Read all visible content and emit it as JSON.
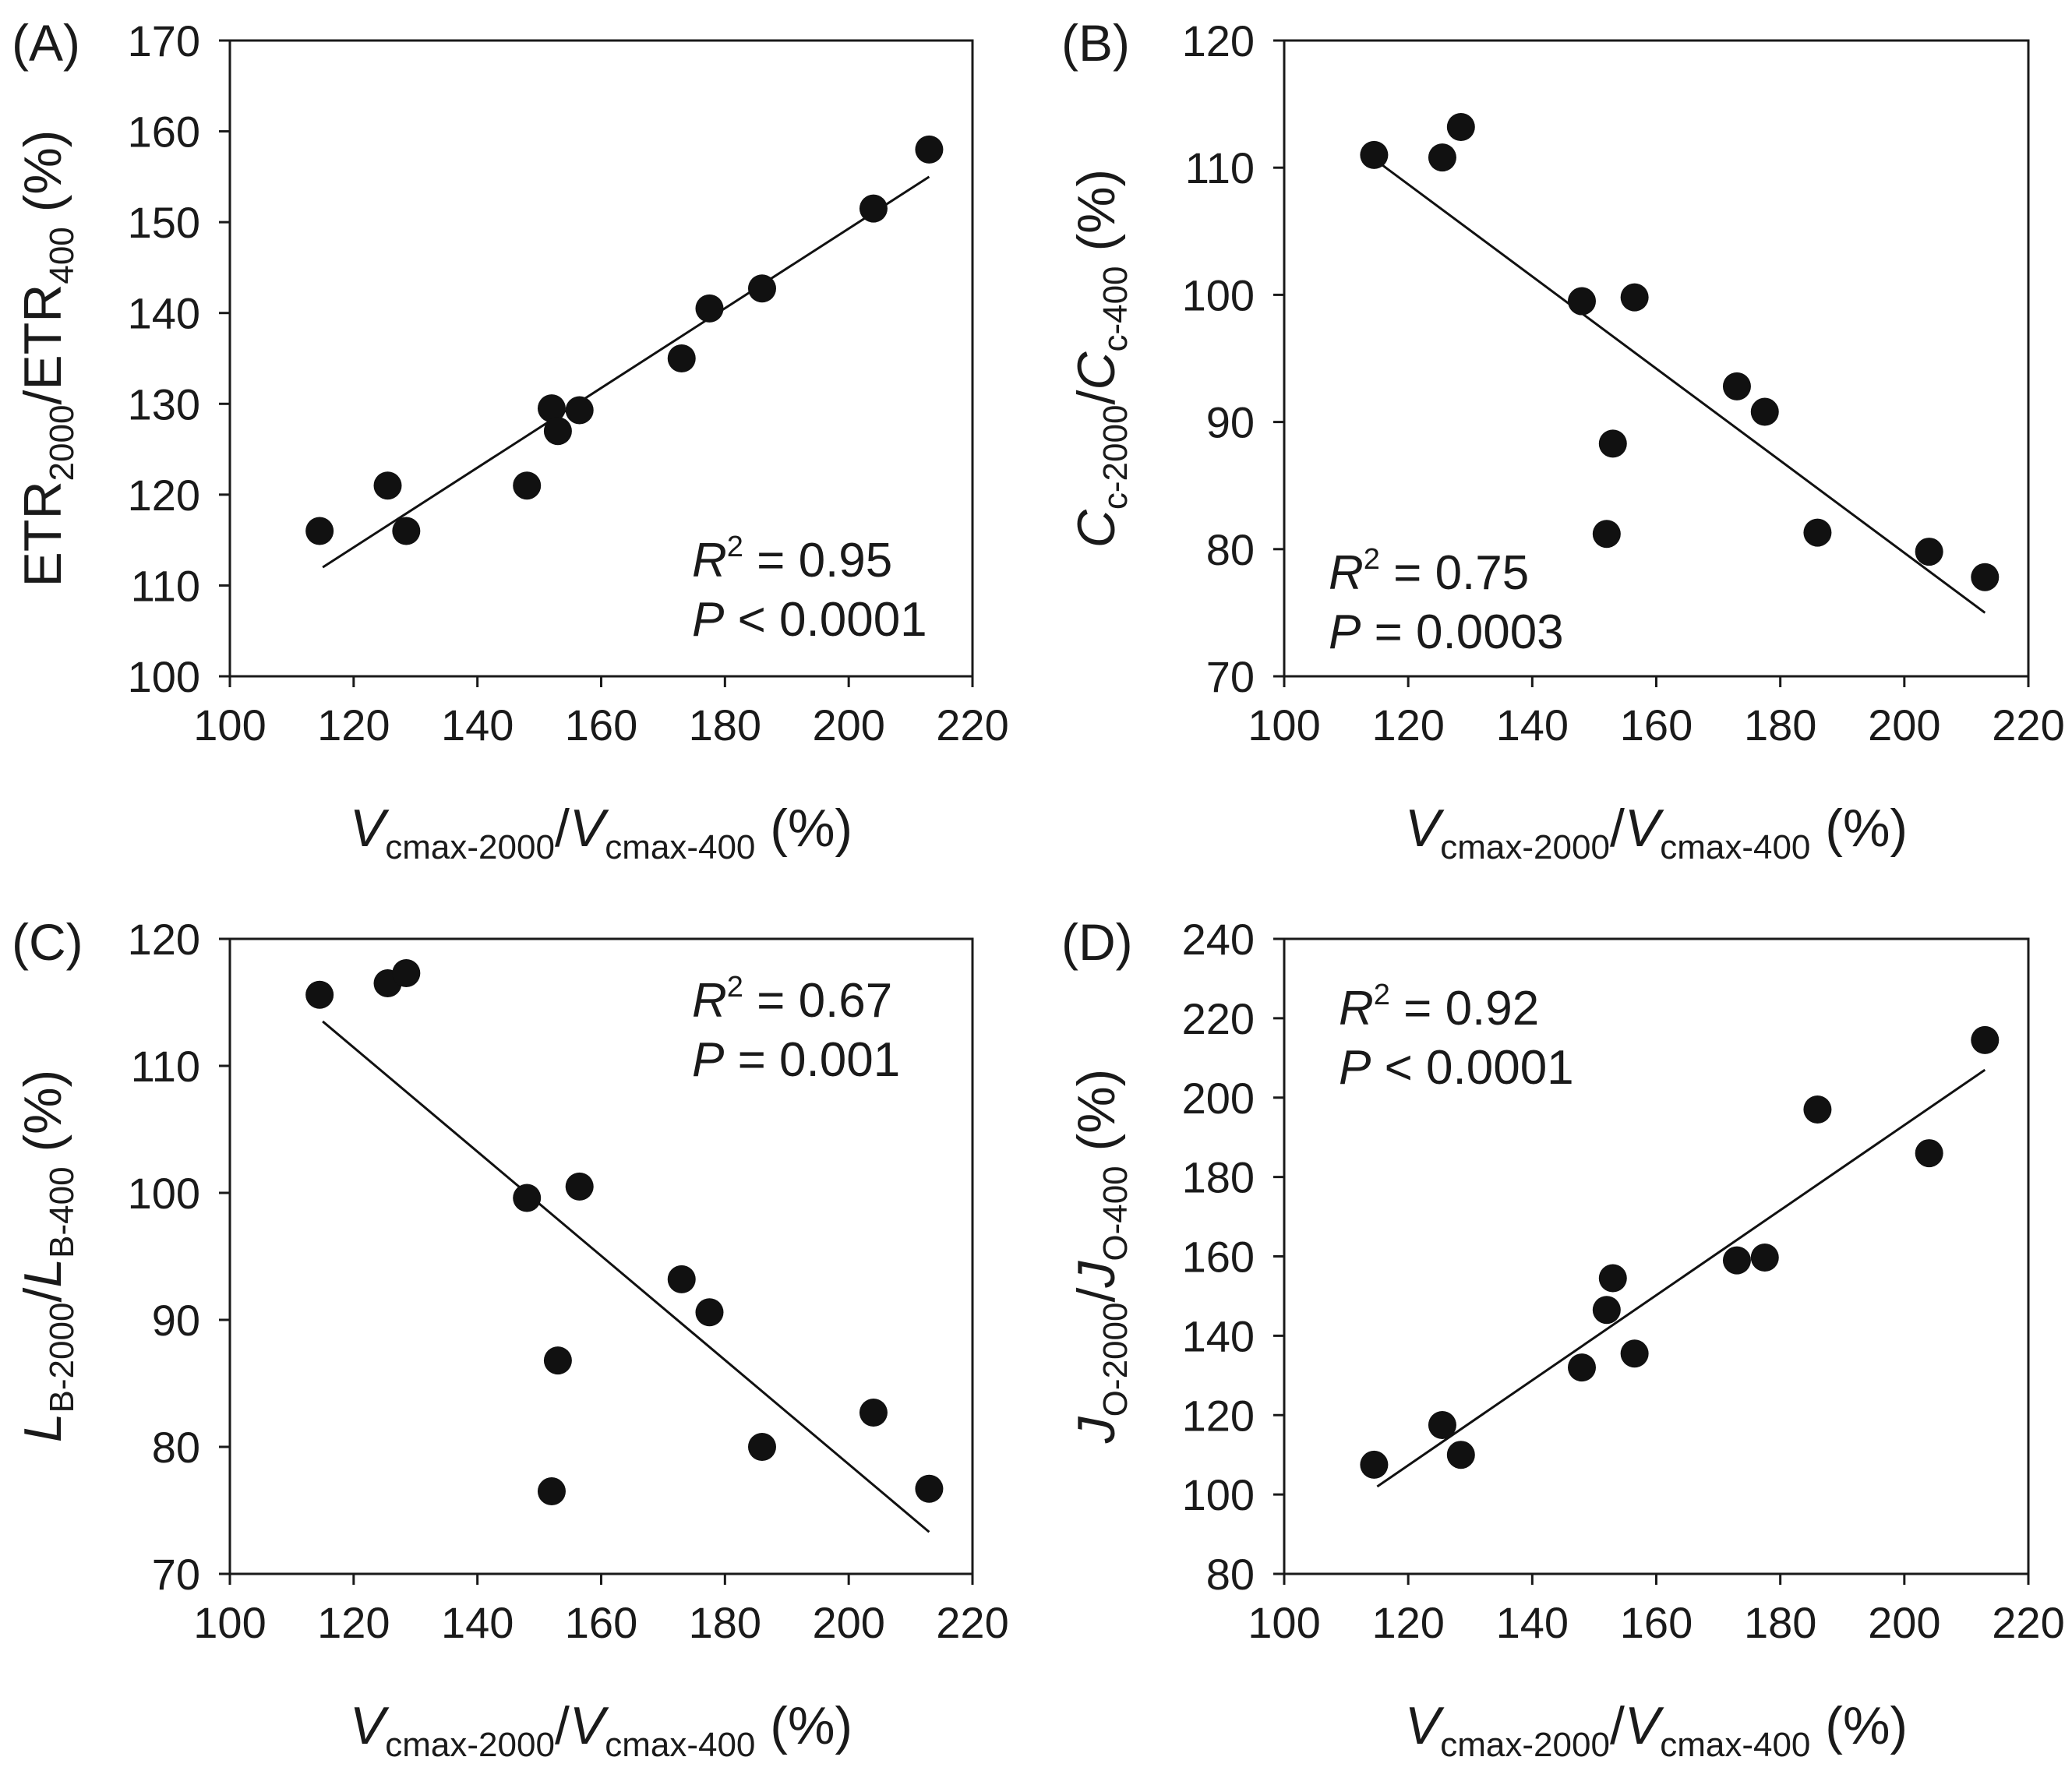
{
  "chart_data": [
    {
      "panel": "(A)",
      "type": "scatter",
      "xlabel": {
        "main": "V",
        "sub1": "cmax-2000",
        "slash": "/",
        "main2": "V",
        "sub2": "cmax-400",
        "unit": " (%)"
      },
      "ylabel": {
        "main": "ETR",
        "sub1": "2000",
        "slash": "/ETR",
        "sub2": "400",
        "unit": " (%)"
      },
      "xlim": [
        100,
        220
      ],
      "ylim": [
        100,
        170
      ],
      "xticks": [
        "100",
        "120",
        "140",
        "160",
        "180",
        "200",
        "220"
      ],
      "yticks": [
        "100",
        "110",
        "120",
        "130",
        "140",
        "150",
        "160",
        "170"
      ],
      "x": [
        114.5,
        125.5,
        128.5,
        148,
        152,
        153,
        156.5,
        173,
        177.5,
        186,
        204,
        213
      ],
      "y": [
        116,
        121,
        116,
        121,
        129.5,
        127,
        129.3,
        135,
        140.5,
        142.7,
        151.5,
        158
      ],
      "fit": {
        "x": [
          115,
          213
        ],
        "y": [
          112,
          155
        ]
      },
      "stats": {
        "r2_label": "R",
        "r2_sup": "2",
        "r2_value": " = 0.95",
        "p_label": "P",
        "p_value": " < 0.0001"
      }
    },
    {
      "panel": "(B)",
      "type": "scatter",
      "xlabel": {
        "main": "V",
        "sub1": "cmax-2000",
        "slash": "/",
        "main2": "V",
        "sub2": "cmax-400",
        "unit": " (%)"
      },
      "ylabel": {
        "main": "C",
        "sub1": "c-2000",
        "slash": "/",
        "main2": "C",
        "sub2": "c-400",
        "unit": " (%)"
      },
      "xlim": [
        100,
        220
      ],
      "ylim": [
        70,
        120
      ],
      "xticks": [
        "100",
        "120",
        "140",
        "160",
        "180",
        "200",
        "220"
      ],
      "yticks": [
        "70",
        "80",
        "90",
        "100",
        "110",
        "120"
      ],
      "x": [
        114.5,
        125.5,
        128.5,
        148,
        152,
        153,
        156.5,
        173,
        177.5,
        186,
        204,
        213
      ],
      "y": [
        111,
        110.8,
        113.2,
        99.5,
        81.2,
        88.3,
        99.8,
        92.8,
        90.8,
        81.3,
        79.8,
        77.8
      ],
      "fit": {
        "x": [
          115,
          213
        ],
        "y": [
          110.5,
          75
        ]
      },
      "stats": {
        "r2_label": "R",
        "r2_sup": "2",
        "r2_value": " = 0.75",
        "p_label": "P",
        "p_value": " = 0.0003"
      }
    },
    {
      "panel": "(C)",
      "type": "scatter",
      "xlabel": {
        "main": "V",
        "sub1": "cmax-2000",
        "slash": "/",
        "main2": "V",
        "sub2": "cmax-400",
        "unit": " (%)"
      },
      "ylabel": {
        "main": "L",
        "sub1": "B-2000",
        "slash": "/",
        "main2": "L",
        "sub2": "B-400",
        "unit": " (%)"
      },
      "xlim": [
        100,
        220
      ],
      "ylim": [
        70,
        120
      ],
      "xticks": [
        "100",
        "120",
        "140",
        "160",
        "180",
        "200",
        "220"
      ],
      "yticks": [
        "70",
        "80",
        "90",
        "100",
        "110",
        "120"
      ],
      "x": [
        114.5,
        125.5,
        128.5,
        148,
        152,
        153,
        156.5,
        173,
        177.5,
        186,
        204,
        213
      ],
      "y": [
        115.6,
        116.5,
        117.3,
        99.6,
        76.5,
        86.8,
        100.5,
        93.2,
        90.6,
        80,
        82.7,
        76.7
      ],
      "fit": {
        "x": [
          115,
          213
        ],
        "y": [
          113.5,
          73.3
        ]
      },
      "stats": {
        "r2_label": "R",
        "r2_sup": "2",
        "r2_value": " = 0.67",
        "p_label": "P",
        "p_value": " = 0.001"
      }
    },
    {
      "panel": "(D)",
      "type": "scatter",
      "xlabel": {
        "main": "V",
        "sub1": "cmax-2000",
        "slash": "/",
        "main2": "V",
        "sub2": "cmax-400",
        "unit": " (%)"
      },
      "ylabel": {
        "main": "J",
        "sub1": "O-2000",
        "slash": "/",
        "main2": "J",
        "sub2": "O-400",
        "unit": " (%)"
      },
      "xlim": [
        100,
        220
      ],
      "ylim": [
        80,
        240
      ],
      "xticks": [
        "100",
        "120",
        "140",
        "160",
        "180",
        "200",
        "220"
      ],
      "yticks": [
        "80",
        "100",
        "120",
        "140",
        "160",
        "180",
        "200",
        "220",
        "240"
      ],
      "x": [
        114.5,
        125.5,
        128.5,
        148,
        152,
        153,
        156.5,
        173,
        177.5,
        186,
        204,
        213
      ],
      "y": [
        107.5,
        117.5,
        110,
        132,
        146.5,
        154.5,
        135.5,
        159,
        159.7,
        197,
        186,
        214.5
      ],
      "fit": {
        "x": [
          115,
          213
        ],
        "y": [
          102,
          207
        ]
      },
      "stats": {
        "r2_label": "R",
        "r2_sup": "2",
        "r2_value": " = 0.92",
        "p_label": "P",
        "p_value": " < 0.0001"
      }
    }
  ]
}
